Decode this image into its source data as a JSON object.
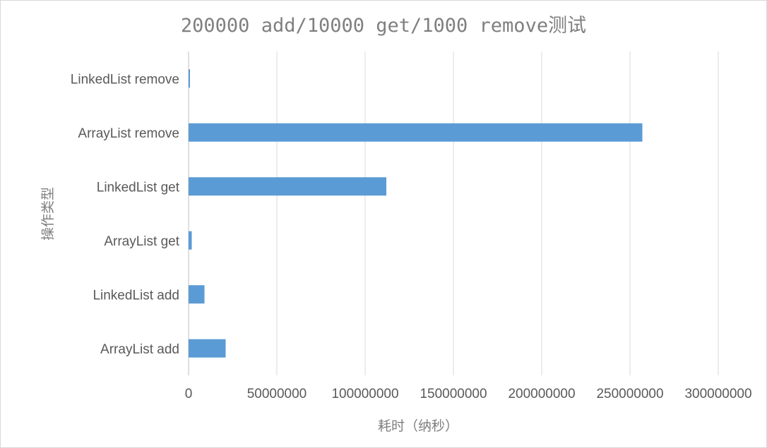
{
  "chart_data": {
    "type": "bar",
    "orientation": "horizontal",
    "title": "200000 add/10000 get/1000 remove测试",
    "xlabel": "耗时（纳秒）",
    "ylabel": "操作类型",
    "categories": [
      "LinkedList remove",
      "ArrayList remove",
      "LinkedList get",
      "ArrayList get",
      "LinkedList add",
      "ArrayList add"
    ],
    "values": [
      800000,
      257000000,
      112000000,
      1800000,
      9000000,
      21000000
    ],
    "xlim": [
      0,
      300000000
    ],
    "xticks": [
      "0",
      "50000000",
      "100000000",
      "150000000",
      "200000000",
      "250000000",
      "300000000"
    ],
    "grid": true,
    "bar_color": "#5b9bd5"
  }
}
